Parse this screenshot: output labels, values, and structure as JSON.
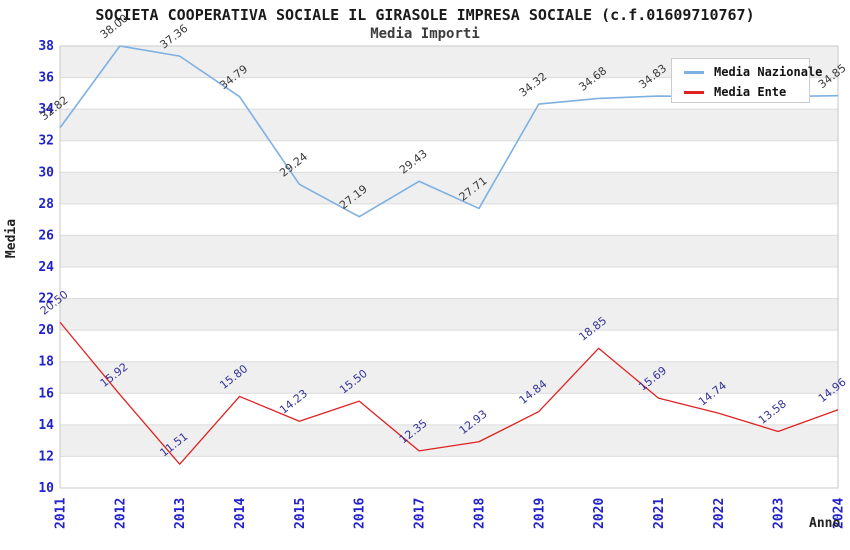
{
  "chart_data": {
    "type": "line",
    "title": "SOCIETA COOPERATIVA SOCIALE IL GIRASOLE IMPRESA SOCIALE (c.f.01609710767)",
    "subtitle": "Media Importi",
    "xlabel": "Anno",
    "ylabel": "Media",
    "x": [
      "2011",
      "2012",
      "2013",
      "2014",
      "2015",
      "2016",
      "2017",
      "2018",
      "2019",
      "2020",
      "2021",
      "2022",
      "2023",
      "2024"
    ],
    "ylim": [
      10,
      38
    ],
    "ytick_step": 2,
    "grid": "horizontal-bands",
    "legend_position": "top-right",
    "series": [
      {
        "name": "Media Nazionale",
        "color": "#7eb0e2",
        "label_color": "#3a3a3a",
        "values": [
          32.82,
          38.0,
          37.36,
          34.79,
          29.24,
          27.19,
          29.43,
          27.71,
          34.32,
          34.68,
          34.83,
          34.8,
          34.8,
          34.85
        ],
        "point_labels": [
          "32.82",
          "38.00",
          "37.36",
          "34.79",
          "29.24",
          "27.19",
          "29.43",
          "27.71",
          "34.32",
          "34.68",
          "34.83",
          null,
          null,
          "34.85"
        ]
      },
      {
        "name": "Media Ente",
        "color": "#e02222",
        "label_color": "#333399",
        "values": [
          20.5,
          15.92,
          11.51,
          15.8,
          14.23,
          15.5,
          12.35,
          12.93,
          14.84,
          18.85,
          15.69,
          14.74,
          13.58,
          14.96
        ],
        "point_labels": [
          "20.50",
          "15.92",
          "11.51",
          "15.80",
          "14.23",
          "15.50",
          "12.35",
          "12.93",
          "14.84",
          "18.85",
          "15.69",
          "14.74",
          "13.58",
          "14.96"
        ]
      }
    ],
    "colors": {
      "tick_labels": "#2222cc",
      "band_fill": "#efefef",
      "gridline": "#dcdcdc",
      "plot_border": "#c8c8c8",
      "background": "#ffffff"
    }
  }
}
